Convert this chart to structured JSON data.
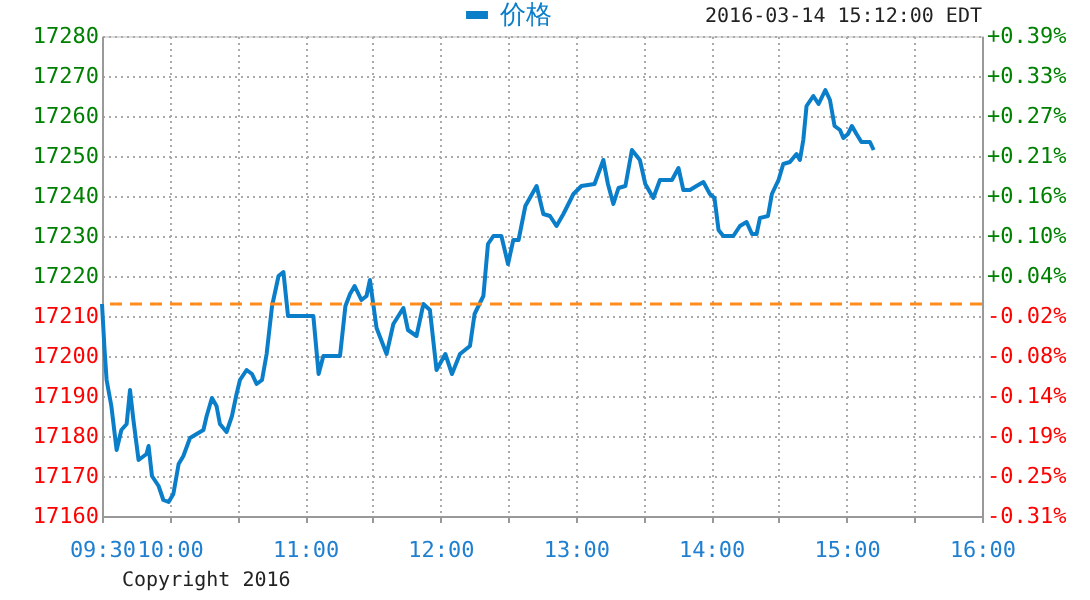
{
  "chart_data": {
    "type": "line",
    "annotations": [
      "2016-03-14 15:12:00 EDT",
      "Copyright 2016"
    ],
    "x": [
      9.5,
      9.519,
      9.534,
      9.569,
      9.608,
      9.643,
      9.682,
      9.707,
      9.732,
      9.77,
      9.829,
      9.844,
      9.869,
      9.918,
      9.953,
      9.992,
      10.027,
      10.066,
      10.101,
      10.15,
      10.199,
      10.249,
      10.273,
      10.312,
      10.346,
      10.371,
      10.42,
      10.46,
      10.494,
      10.519,
      10.568,
      10.608,
      10.642,
      10.682,
      10.716,
      10.756,
      10.804,
      10.84,
      10.874,
      11.061,
      11.1,
      11.135,
      11.258,
      11.298,
      11.332,
      11.366,
      11.416,
      11.454,
      11.479,
      11.528,
      11.602,
      11.652,
      11.726,
      11.76,
      11.823,
      11.874,
      11.922,
      11.971,
      12.036,
      12.085,
      12.144,
      12.218,
      12.252,
      12.317,
      12.351,
      12.391,
      12.45,
      12.499,
      12.538,
      12.577,
      12.627,
      12.71,
      12.76,
      12.809,
      12.857,
      12.908,
      12.982,
      13.041,
      13.138,
      13.203,
      13.237,
      13.277,
      13.315,
      13.366,
      13.414,
      13.473,
      13.513,
      13.572,
      13.621,
      13.71,
      13.758,
      13.794,
      13.843,
      13.891,
      13.942,
      13.99,
      14.024,
      14.054,
      14.089,
      14.163,
      14.212,
      14.261,
      14.301,
      14.335,
      14.36,
      14.419,
      14.448,
      14.497,
      14.532,
      14.581,
      14.63,
      14.655,
      14.68,
      14.704,
      14.754,
      14.793,
      14.843,
      14.877,
      14.911,
      14.951,
      14.976,
      15.01,
      15.039,
      15.073,
      15.109,
      15.172,
      15.2
    ],
    "series": [
      {
        "name": "价格",
        "color": "#0b7ec9",
        "values": [
          17213,
          17201.5,
          17194,
          17187.5,
          17176.5,
          17181.5,
          17183,
          17191.5,
          17184,
          17174,
          17175.5,
          17177.5,
          17170,
          17167.5,
          17164,
          17163.5,
          17165.5,
          17173,
          17175,
          17179.5,
          17180.5,
          17181.5,
          17185,
          17189.5,
          17187.5,
          17183,
          17181,
          17185,
          17190.5,
          17194,
          17196.5,
          17195.5,
          17193,
          17194,
          17200.5,
          17212.5,
          17220,
          17221,
          17210,
          17210,
          17195.5,
          17200,
          17200,
          17212.5,
          17215.5,
          17217.5,
          17214,
          17215,
          17219,
          17207,
          17200.5,
          17208,
          17212,
          17206.5,
          17205,
          17213,
          17211.5,
          17196.5,
          17200.5,
          17195.5,
          17200.5,
          17202.5,
          17210.5,
          17215,
          17228,
          17230,
          17230,
          17223,
          17229,
          17229,
          17237.5,
          17242.5,
          17235.5,
          17235,
          17232.5,
          17235.5,
          17240.5,
          17242.5,
          17243,
          17249,
          17243,
          17238,
          17242,
          17242.5,
          17251.5,
          17249,
          17243,
          17239.5,
          17244,
          17244,
          17247,
          17241.5,
          17241.5,
          17242.5,
          17243.5,
          17240.5,
          17239.5,
          17231.5,
          17230,
          17230,
          17232.5,
          17233.5,
          17230.5,
          17230.5,
          17234.5,
          17235,
          17240.5,
          17244,
          17248,
          17248.5,
          17250.5,
          17249,
          17254,
          17262.5,
          17265,
          17263,
          17266.5,
          17264,
          17257.5,
          17256.5,
          17254.5,
          17255.5,
          17257.5,
          17255.5,
          17253.5,
          17253.5,
          17251.5
        ]
      }
    ],
    "xlim": [
      9.5,
      16
    ],
    "xticks": [
      {
        "value": 9.5,
        "label": "09:30"
      },
      {
        "value": 10,
        "label": "10:00"
      },
      {
        "value": 10.5,
        "label": null
      },
      {
        "value": 11,
        "label": "11:00"
      },
      {
        "value": 11.5,
        "label": null
      },
      {
        "value": 12,
        "label": "12:00"
      },
      {
        "value": 12.5,
        "label": null
      },
      {
        "value": 13,
        "label": "13:00"
      },
      {
        "value": 13.5,
        "label": null
      },
      {
        "value": 14,
        "label": "14:00"
      },
      {
        "value": 14.5,
        "label": null
      },
      {
        "value": 15,
        "label": "15:00"
      },
      {
        "value": 15.5,
        "label": null
      },
      {
        "value": 16,
        "label": "16:00"
      }
    ],
    "ylim": [
      17160,
      17280
    ],
    "yticks": [
      17160,
      17170,
      17180,
      17190,
      17200,
      17210,
      17220,
      17230,
      17240,
      17250,
      17260,
      17270,
      17280
    ],
    "y2lim": [
      -0.31,
      0.39
    ],
    "y2ticks": [
      {
        "value": -0.31,
        "label": "-0.31%"
      },
      {
        "value": -0.252,
        "label": "-0.25%"
      },
      {
        "value": -0.193,
        "label": "-0.19%"
      },
      {
        "value": -0.135,
        "label": "-0.14%"
      },
      {
        "value": -0.077,
        "label": "-0.08%"
      },
      {
        "value": -0.019,
        "label": "-0.02%"
      },
      {
        "value": 0.04,
        "label": "+0.04%"
      },
      {
        "value": 0.098,
        "label": "+0.10%"
      },
      {
        "value": 0.156,
        "label": "+0.16%"
      },
      {
        "value": 0.215,
        "label": "+0.21%"
      },
      {
        "value": 0.273,
        "label": "+0.27%"
      },
      {
        "value": 0.331,
        "label": "+0.33%"
      },
      {
        "value": 0.39,
        "label": "+0.39%"
      }
    ],
    "ref_lines": [
      {
        "axis": "y",
        "value": 17213,
        "label": null,
        "color": "#ff8c1a",
        "line_style": "dashed"
      }
    ],
    "grid": true,
    "legend": "top",
    "marker": "none",
    "line_style": "solid"
  }
}
